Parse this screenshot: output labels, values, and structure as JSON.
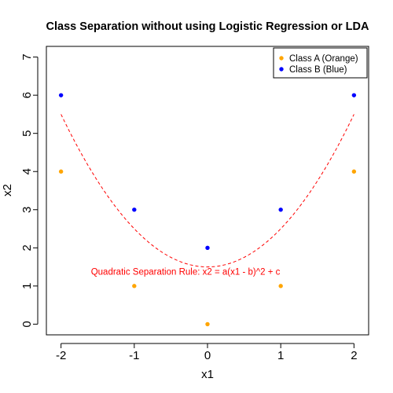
{
  "chart_data": {
    "type": "scatter",
    "title": "Class Separation without using Logistic Regression or LDA",
    "xlabel": "x1",
    "ylabel": "x2",
    "xlim": [
      -2.2,
      2.2
    ],
    "ylim": [
      -0.28,
      7.28
    ],
    "xticks": [
      -2,
      -1,
      0,
      1,
      2
    ],
    "yticks": [
      0,
      1,
      2,
      3,
      4,
      5,
      6,
      7
    ],
    "grid": false,
    "legend_position": "top-right",
    "series": [
      {
        "name": "Class A (Orange)",
        "color": "#FFA500",
        "x": [
          -2,
          -1,
          0,
          1,
          2
        ],
        "y": [
          4,
          1,
          0,
          1,
          4
        ]
      },
      {
        "name": "Class B (Blue)",
        "color": "#0000FF",
        "x": [
          -2,
          -1,
          0,
          1,
          2
        ],
        "y": [
          6,
          3,
          2,
          3,
          6
        ]
      }
    ],
    "curve": {
      "style": "dashed",
      "color": "#FF0000",
      "a": 1,
      "b": 0,
      "c": 1.5,
      "x_range": [
        -2,
        2
      ]
    },
    "annotation": {
      "text": "Quadratic Separation Rule: x2 = a(x1 - b)^2 + c",
      "x": -0.3,
      "y": 1.3,
      "color": "#FF0000"
    }
  }
}
